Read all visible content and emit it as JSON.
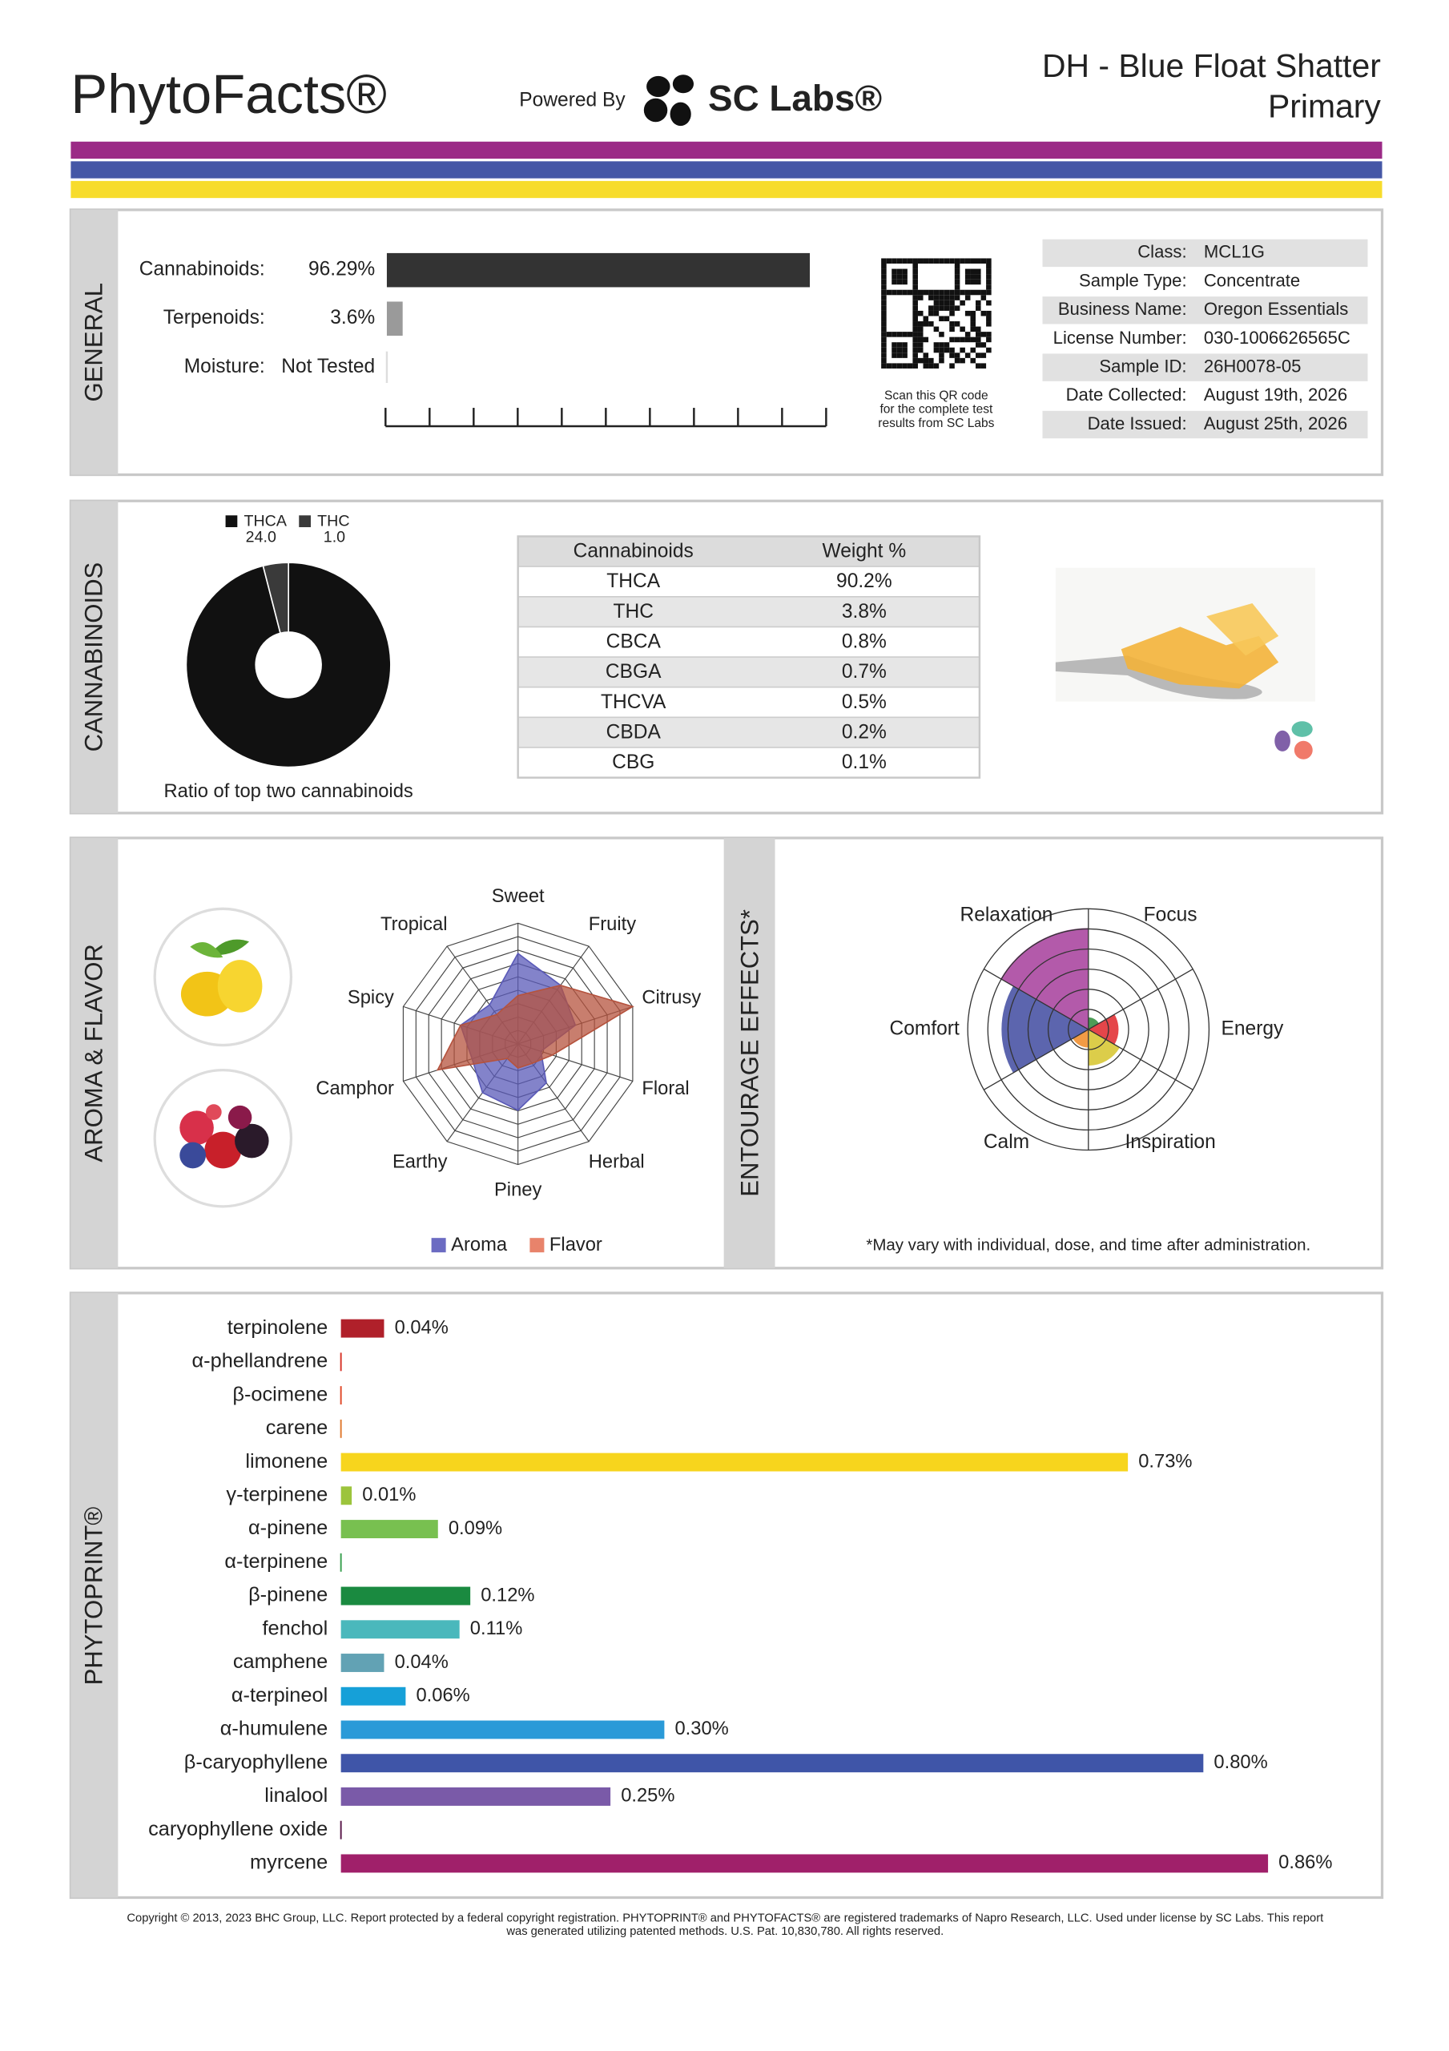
{
  "header": {
    "logo": "PhytoFacts®",
    "powered": "Powered By",
    "brand": "SC Labs®",
    "title": "DH - Blue Float Shatter",
    "subtitle": "Primary"
  },
  "general": {
    "label": "GENERAL",
    "xlim": [
      0,
      100
    ],
    "rows": [
      {
        "label": "Cannabinoids:",
        "value": 96.29,
        "value_label": "96.29%",
        "color": "#333333"
      },
      {
        "label": "Terpenoids:",
        "value": 3.6,
        "value_label": "3.6%",
        "color": "#9a9a9a"
      },
      {
        "label": "Moisture:",
        "text": "Not Tested"
      }
    ],
    "qr_note": [
      "Scan this QR code",
      "for the complete test",
      "results from SC Labs"
    ],
    "info": [
      [
        "Class:",
        "MCL1G"
      ],
      [
        "Sample Type:",
        "Concentrate"
      ],
      [
        "Business Name:",
        "Oregon Essentials"
      ],
      [
        "License Number:",
        "030-1006626565C"
      ],
      [
        "Sample ID:",
        "26H0078-05"
      ],
      [
        "Date Collected:",
        "August 19th, 2026"
      ],
      [
        "Date Issued:",
        "August 25th, 2026"
      ]
    ]
  },
  "cannabinoids": {
    "label": "CANNABINOIDS",
    "chart": {
      "type": "donut",
      "caption": "Ratio of top two cannabinoids",
      "series": [
        {
          "name": "THCA",
          "value": 24,
          "value_label": "24.0",
          "color": "#111111"
        },
        {
          "name": "THC",
          "value": 1,
          "value_label": "1.0",
          "color": "#3a3a3a"
        }
      ]
    },
    "table": {
      "header": [
        "Cannabinoids",
        "Weight %"
      ],
      "rows": [
        [
          "THCA",
          "90.2%"
        ],
        [
          "THC",
          "3.8%"
        ],
        [
          "CBCA",
          "0.8%"
        ],
        [
          "CBGA",
          "0.7%"
        ],
        [
          "THCVA",
          "0.5%"
        ],
        [
          "CBDA",
          "0.2%"
        ],
        [
          "CBG",
          "0.1%"
        ]
      ]
    }
  },
  "aroma": {
    "label": "AROMA & FLAVOR",
    "chart": {
      "type": "radar",
      "rlim": [
        0,
        10
      ],
      "axes": [
        "Sweet",
        "Fruity",
        "Citrusy",
        "Floral",
        "Herbal",
        "Piney",
        "Earthy",
        "Camphor",
        "Spicy",
        "Tropical"
      ],
      "series": [
        {
          "name": "Aroma",
          "color": "#5a5ab8",
          "legend_color": "#6b6bc2",
          "values": [
            7.5,
            6,
            5,
            2,
            4,
            5.5,
            5,
            4,
            5,
            4
          ]
        },
        {
          "name": "Flavor",
          "color": "#b5533e",
          "legend_color": "#e8836b",
          "values": [
            4,
            6,
            10,
            3,
            2,
            2,
            1.5,
            7,
            5,
            3
          ]
        }
      ]
    }
  },
  "entourage": {
    "label": "ENTOURAGE EFFECTS*",
    "chart": {
      "type": "polar-area",
      "rlim": [
        0,
        10
      ],
      "series": [
        {
          "name": "Focus",
          "value": 1,
          "color": "#2e8b3a"
        },
        {
          "name": "Energy",
          "value": 2.5,
          "color": "#e0262a"
        },
        {
          "name": "Inspiration",
          "value": 3,
          "color": "#d6c42a"
        },
        {
          "name": "Calm",
          "value": 1.5,
          "color": "#f08a24"
        },
        {
          "name": "Comfort",
          "value": 7.2,
          "color": "#3f4aa0"
        },
        {
          "name": "Relaxation",
          "value": 8.4,
          "color": "#a63d9b"
        }
      ]
    },
    "note": "*May vary with individual, dose, and time after administration."
  },
  "phytoprint": {
    "label": "PHYTOPRINT®",
    "chart": {
      "type": "bar",
      "xlim": [
        0,
        0.86
      ],
      "bars": [
        {
          "name": "terpinolene",
          "value": 0.04,
          "value_label": "0.04%",
          "color": "#b0202a",
          "text_color": "#b0202a"
        },
        {
          "name": "α-phellandrene",
          "value": 0,
          "color": "#d8352a",
          "text_color": "#d8352a"
        },
        {
          "name": "β-ocimene",
          "value": 0,
          "color": "#e04a2a",
          "text_color": "#d8452a"
        },
        {
          "name": "carene",
          "value": 0,
          "color": "#e07a30",
          "text_color": "#c8702a"
        },
        {
          "name": "limonene",
          "value": 0.73,
          "value_label": "0.73%",
          "color": "#f7d51d",
          "text_color": "#a08c18"
        },
        {
          "name": "γ-terpinene",
          "value": 0.01,
          "value_label": "0.01%",
          "color": "#9cc43c",
          "text_color": "#6c8e2a"
        },
        {
          "name": "α-pinene",
          "value": 0.09,
          "value_label": "0.09%",
          "color": "#78c050",
          "text_color": "#3e8e2e"
        },
        {
          "name": "α-terpinene",
          "value": 0,
          "color": "#3aa050",
          "text_color": "#2a8a40"
        },
        {
          "name": "β-pinene",
          "value": 0.12,
          "value_label": "0.12%",
          "color": "#1a8a40",
          "text_color": "#1a7a38"
        },
        {
          "name": "fenchol",
          "value": 0.11,
          "value_label": "0.11%",
          "color": "#4ab8bc",
          "text_color": "#2a8a90"
        },
        {
          "name": "camphene",
          "value": 0.04,
          "value_label": "0.04%",
          "color": "#62a2b4",
          "text_color": "#3a7a90"
        },
        {
          "name": "α-terpineol",
          "value": 0.06,
          "value_label": "0.06%",
          "color": "#16a0d8",
          "text_color": "#1a80b0"
        },
        {
          "name": "α-humulene",
          "value": 0.3,
          "value_label": "0.30%",
          "color": "#2a9ad8",
          "text_color": "#2a70b8"
        },
        {
          "name": "β-caryophyllene",
          "value": 0.8,
          "value_label": "0.80%",
          "color": "#3f55a8",
          "text_color": "#3f55a8"
        },
        {
          "name": "linalool",
          "value": 0.25,
          "value_label": "0.25%",
          "color": "#7a5aa8",
          "text_color": "#6a4a98"
        },
        {
          "name": "caryophyllene oxide",
          "value": 0,
          "color": "#5a1a4a",
          "text_color": "#5a1a3a"
        },
        {
          "name": "myrcene",
          "value": 0.86,
          "value_label": "0.86%",
          "color": "#a0206a",
          "text_color": "#a0206a"
        }
      ]
    }
  },
  "footer": [
    "Copyright © 2013, 2023 BHC Group, LLC. Report protected by a federal copyright registration. PHYTOPRINT® and PHYTOFACTS® are registered trademarks of Napro Research, LLC. Used under license by SC Labs. This report",
    "was generated utilizing patented methods. U.S. Pat. 10,830,780. All rights reserved."
  ]
}
